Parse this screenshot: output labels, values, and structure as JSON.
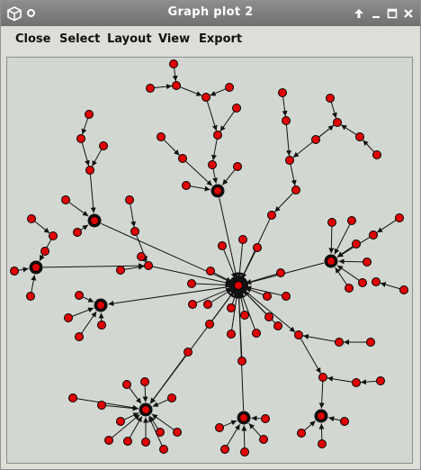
{
  "window": {
    "title": "Graph plot 2"
  },
  "menu": {
    "items": [
      "Close",
      "Select",
      "Layout",
      "View",
      "Export"
    ]
  },
  "colors": {
    "node_fill": "#e00000",
    "node_stroke": "#000000",
    "edge": "#111111",
    "canvas_bg": "#d3d7d1",
    "titlebar": "#7d7f7c"
  },
  "icons": [
    "app-cube-icon",
    "window-menu-icon",
    "move-arrow-icon",
    "minimize-icon",
    "maximize-icon",
    "close-icon"
  ]
}
